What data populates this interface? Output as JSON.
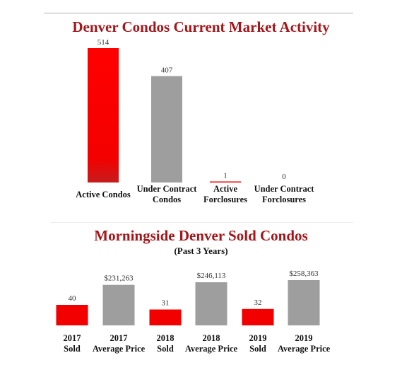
{
  "chart_data": [
    {
      "type": "bar",
      "title": "Denver Condos Current Market Activity",
      "categories": [
        [
          "Active Condos"
        ],
        [
          "Under Contract",
          "Condos"
        ],
        [
          "Active",
          "Forclosures"
        ],
        [
          "Under Contract",
          "Forclosures"
        ]
      ],
      "values": [
        514,
        407,
        1,
        0
      ],
      "value_labels": [
        "514",
        "407",
        "1",
        "0"
      ],
      "colors": [
        "#f20000",
        "#9e9e9e",
        "#f20000",
        "#9e9e9e"
      ],
      "ylim": [
        0,
        514
      ]
    },
    {
      "type": "bar",
      "title": "Morningside Denver Sold Condos",
      "subtitle": "(Past 3 Years)",
      "categories": [
        [
          "2017",
          "Sold"
        ],
        [
          "2017",
          "Average Price"
        ],
        [
          "2018",
          "Sold"
        ],
        [
          "2018",
          "Average Price"
        ],
        [
          "2019",
          "Sold"
        ],
        [
          "2019",
          "Average Price"
        ]
      ],
      "values": [
        40,
        231263,
        31,
        246113,
        32,
        258363
      ],
      "value_labels": [
        "40",
        "$231,263",
        "31",
        "$246,113",
        "32",
        "$258,363"
      ],
      "colors": [
        "#f20000",
        "#9e9e9e",
        "#f20000",
        "#9e9e9e",
        "#f20000",
        "#9e9e9e"
      ]
    }
  ]
}
